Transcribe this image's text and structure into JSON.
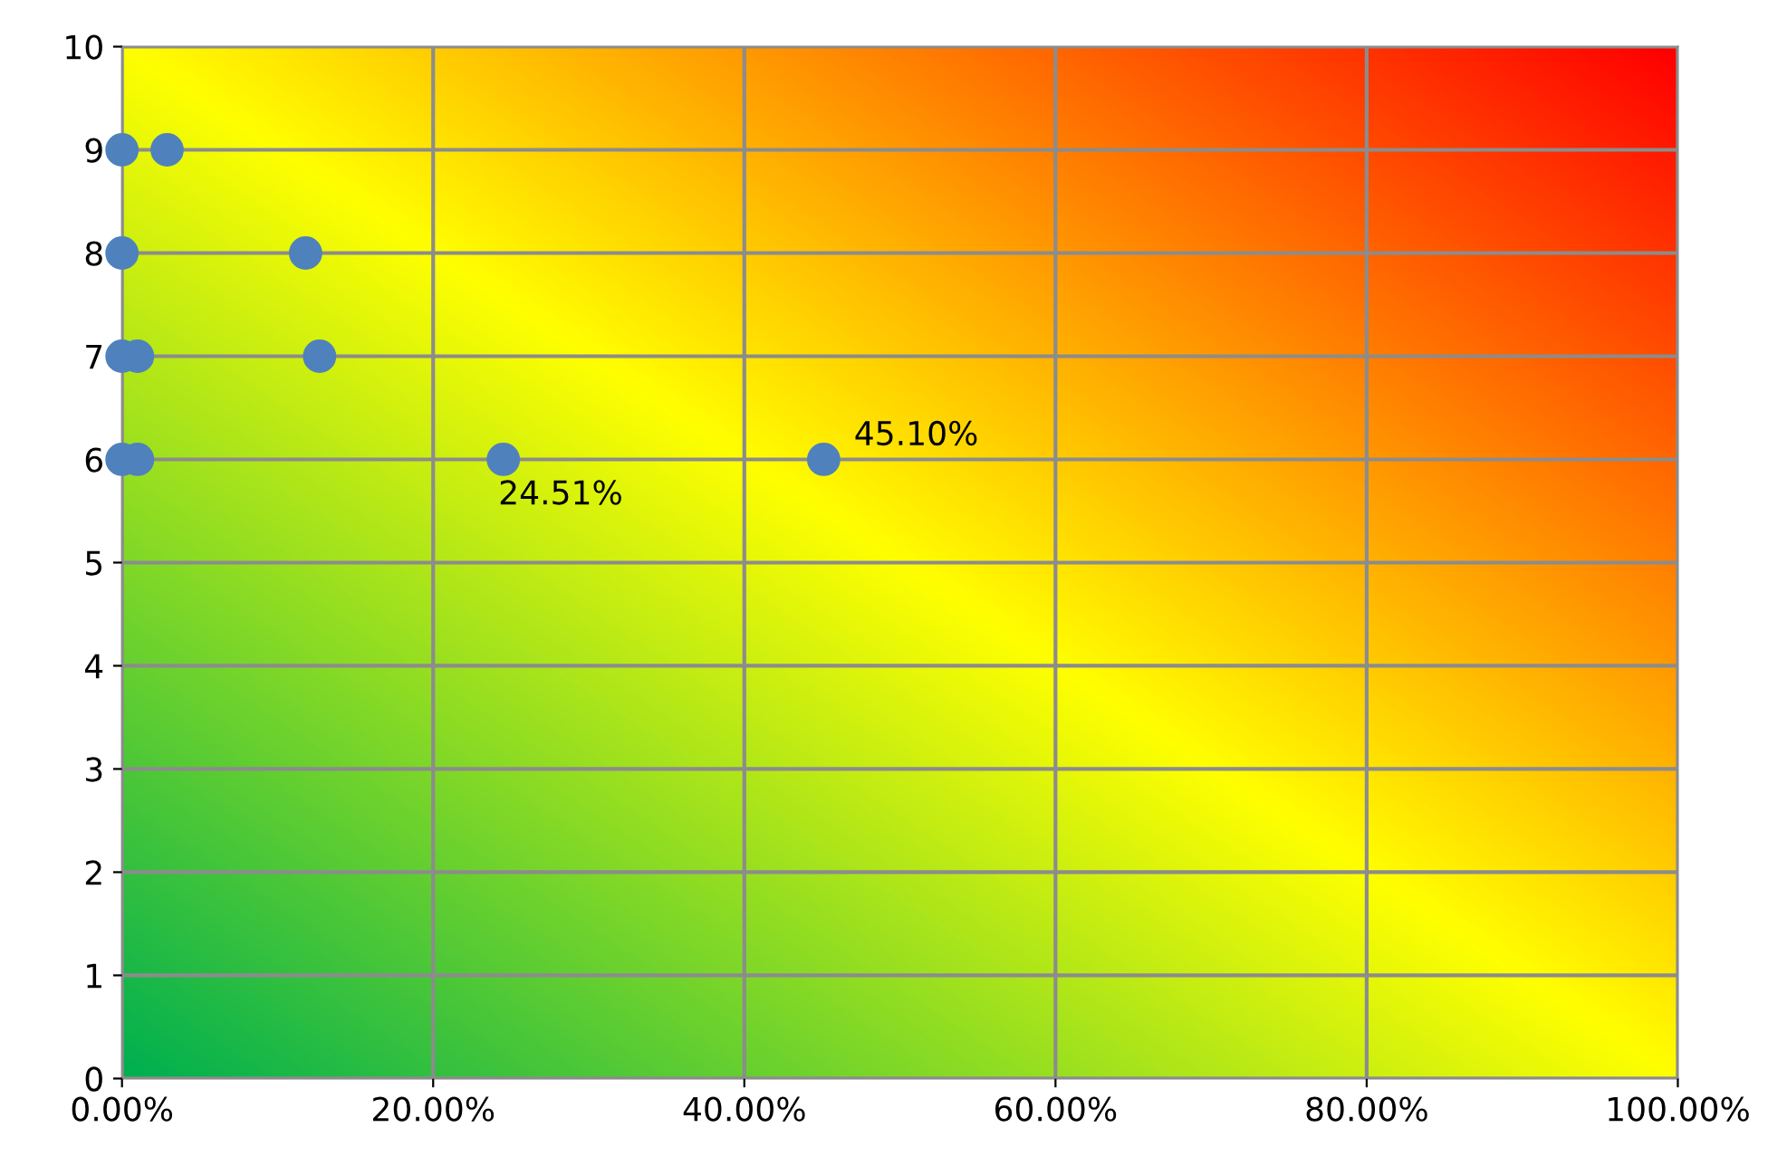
{
  "chart_data": {
    "type": "scatter",
    "x": [
      0,
      2.9,
      0,
      11.8,
      0,
      1,
      12.7,
      0,
      1,
      24.51,
      45.1
    ],
    "values": [
      9,
      9,
      8,
      8,
      7,
      7,
      7,
      6,
      6,
      6,
      6
    ],
    "annotations": [
      {
        "text": "24.51%",
        "x": 24.51,
        "y": 6
      },
      {
        "text": "45.10%",
        "x": 45.1,
        "y": 6
      }
    ],
    "color": "#4f81bd",
    "marker": "circle",
    "grid": true,
    "legend": false,
    "xlim": [
      0,
      100
    ],
    "xticks": [
      {
        "value": 0,
        "label": "0.00%"
      },
      {
        "value": 20,
        "label": "20.00%"
      },
      {
        "value": 40,
        "label": "40.00%"
      },
      {
        "value": 60,
        "label": "60.00%"
      },
      {
        "value": 80,
        "label": "80.00%"
      },
      {
        "value": 100,
        "label": "100.00%"
      }
    ],
    "ylim": [
      0,
      10
    ],
    "yticks": [
      0,
      1,
      2,
      3,
      4,
      5,
      6,
      7,
      8,
      9,
      10
    ]
  }
}
